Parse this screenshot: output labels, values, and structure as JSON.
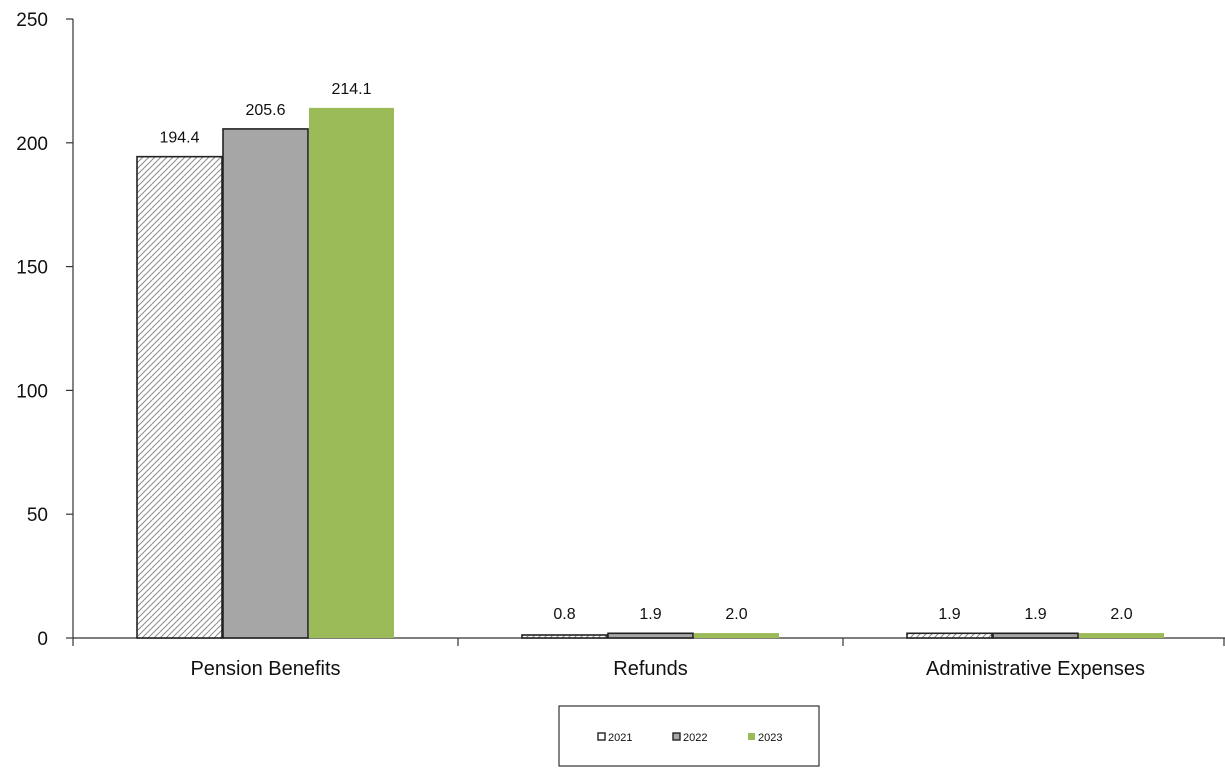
{
  "chart_data": {
    "type": "bar",
    "categories": [
      "Pension Benefits",
      "Refunds",
      "Administrative Expenses"
    ],
    "series": [
      {
        "name": "2021",
        "values": [
          194.4,
          0.8,
          1.9
        ],
        "style": "hatch",
        "color": "#ffffff"
      },
      {
        "name": "2022",
        "values": [
          205.6,
          1.9,
          1.9
        ],
        "style": "solid",
        "color": "#a6a6a6"
      },
      {
        "name": "2023",
        "values": [
          214.1,
          2.0,
          2.0
        ],
        "style": "solid",
        "color": "#9bbb59"
      }
    ],
    "data_labels": [
      [
        "194.4",
        "0.8",
        "1.9"
      ],
      [
        "205.6",
        "1.9",
        "1.9"
      ],
      [
        "214.1",
        "2.0",
        "2.0"
      ]
    ],
    "yticks": [
      "0",
      "50",
      "100",
      "150",
      "200",
      "250"
    ],
    "ylim": [
      0,
      250
    ],
    "grid": false,
    "legend_position": "bottom"
  }
}
